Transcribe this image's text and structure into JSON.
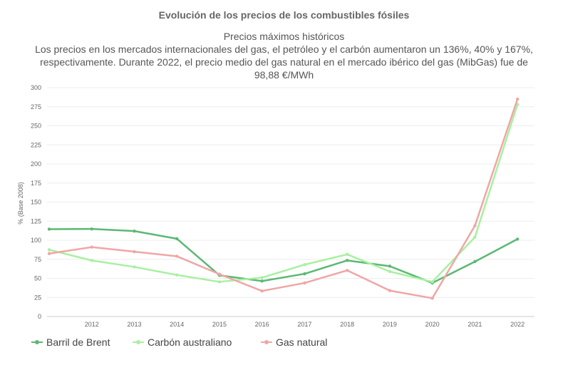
{
  "chart_data": {
    "type": "line",
    "title": "Evolución de los precios de los combustibles fósiles",
    "subtitle_lines": [
      "Precios máximos históricos",
      "Los precios en los mercados internacionales del gas, el petróleo y el carbón aumentaron un 136%, 40% y 167%,",
      "respectivamente. Durante 2022, el precio medio del gas natural en el mercado ibérico del gas (MibGas) fue de",
      "98,88 €/MWh"
    ],
    "xlabel": "",
    "ylabel": "% (Base 2008)",
    "ylim": [
      0,
      300
    ],
    "yticks": [
      0,
      25,
      50,
      75,
      100,
      125,
      150,
      175,
      200,
      225,
      250,
      275,
      300
    ],
    "x": [
      2011,
      2012,
      2013,
      2014,
      2015,
      2016,
      2017,
      2018,
      2019,
      2020,
      2021,
      2022
    ],
    "xticks": [
      2012,
      2013,
      2014,
      2015,
      2016,
      2017,
      2018,
      2019,
      2020,
      2021,
      2022
    ],
    "grid": true,
    "legend_position": "bottom-left",
    "series": [
      {
        "name": "Barril de Brent",
        "color": "#5cb874",
        "values": [
          114.5,
          114.8,
          112,
          102,
          54,
          46.5,
          56,
          73.5,
          66,
          44,
          72,
          101.5
        ]
      },
      {
        "name": "Carbón australiano",
        "color": "#a8f0a0",
        "values": [
          87.5,
          73.5,
          65,
          54.5,
          45.5,
          51,
          68,
          81.5,
          59,
          45.5,
          104,
          278
        ]
      },
      {
        "name": "Gas natural",
        "color": "#f0a6a6",
        "values": [
          82.5,
          91,
          85,
          79,
          55.5,
          33.5,
          44,
          60.5,
          34,
          24,
          119,
          285
        ]
      }
    ]
  }
}
